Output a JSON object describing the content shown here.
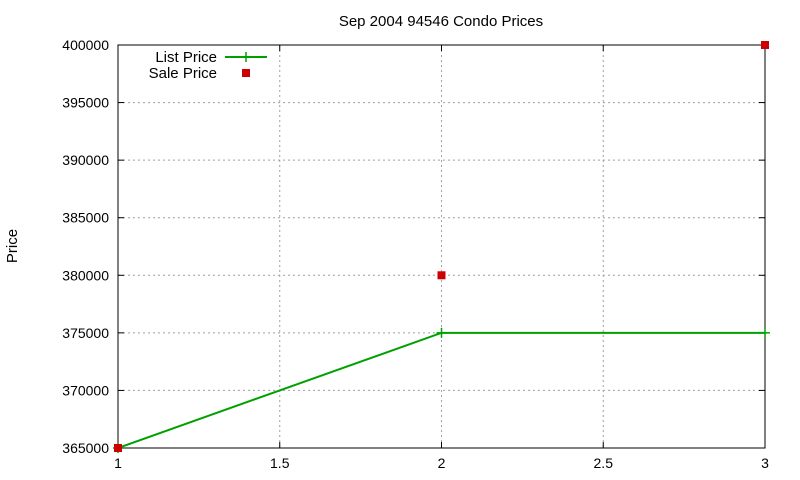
{
  "chart_data": {
    "type": "line",
    "title": "Sep 2004 94546 Condo Prices",
    "xlabel": "",
    "ylabel": "Price",
    "xlim": [
      1,
      3
    ],
    "ylim": [
      365000,
      400000
    ],
    "x_ticks": [
      1,
      1.5,
      2,
      2.5,
      3
    ],
    "x_tick_labels": [
      "1",
      "1.5",
      "2",
      "2.5",
      "3"
    ],
    "y_ticks": [
      365000,
      370000,
      375000,
      380000,
      385000,
      390000,
      395000,
      400000
    ],
    "y_tick_labels": [
      "365000",
      "370000",
      "375000",
      "380000",
      "385000",
      "390000",
      "395000",
      "400000"
    ],
    "grid": true,
    "legend_position": "top-left",
    "series": [
      {
        "name": "List Price",
        "style": "linespoints",
        "marker": "plus",
        "color": "#00a000",
        "x": [
          1,
          2,
          3
        ],
        "y": [
          365000,
          375000,
          375000
        ]
      },
      {
        "name": "Sale Price",
        "style": "points",
        "marker": "square",
        "color": "#cc0000",
        "x": [
          1,
          2,
          3
        ],
        "y": [
          365000,
          380000,
          400000
        ]
      }
    ]
  }
}
